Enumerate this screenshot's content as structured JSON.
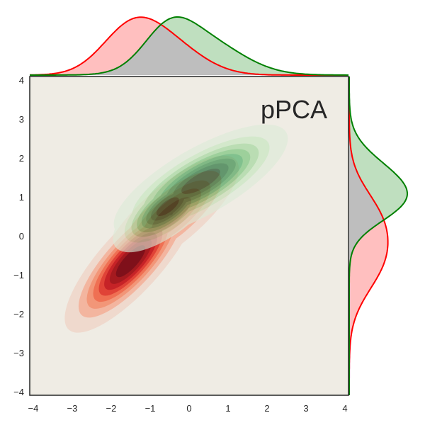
{
  "chart_data": {
    "type": "kde-joint",
    "title": "pPCA",
    "xlabel": "",
    "ylabel": "",
    "xlim": [
      -4.09,
      4.09
    ],
    "ylim": [
      -4.09,
      4.09
    ],
    "xticks": [
      "−4",
      "−3",
      "−2",
      "−1",
      "0",
      "1",
      "2",
      "3",
      "4"
    ],
    "yticks": [
      "4",
      "3",
      "2",
      "1",
      "0",
      "−1",
      "−2",
      "−3",
      "−4"
    ],
    "grid": false,
    "background": "#efece4",
    "series": [
      {
        "color": "#ff0000",
        "palette": [
          "#f0d8cc",
          "#f4b39c",
          "#f39273",
          "#ef6a4c",
          "#e03b2e",
          "#c4191d",
          "#a20f15",
          "#7a0510"
        ],
        "components": [
          {
            "mean": [
              -1.5,
              -0.65
            ],
            "sd": [
              0.72,
              0.78
            ],
            "rho": 0.8,
            "weight": 0.6
          },
          {
            "mean": [
              -0.45,
              0.55
            ],
            "sd": [
              0.8,
              0.7
            ],
            "rho": 0.78,
            "weight": 0.4
          }
        ]
      },
      {
        "color": "#008000",
        "palette": [
          "#dcebd8",
          "#c2e6bd",
          "#9ad596",
          "#6cbf70",
          "#3ea75a",
          "#238b45",
          "#0f6e33",
          "#00441b"
        ],
        "components": [
          {
            "mean": [
              0.3,
              1.4
            ],
            "sd": [
              0.95,
              0.62
            ],
            "rho": 0.75,
            "weight": 0.65
          },
          {
            "mean": [
              -0.55,
              0.75
            ],
            "sd": [
              0.6,
              0.5
            ],
            "rho": 0.7,
            "weight": 0.35
          }
        ]
      }
    ],
    "levels": 8
  }
}
